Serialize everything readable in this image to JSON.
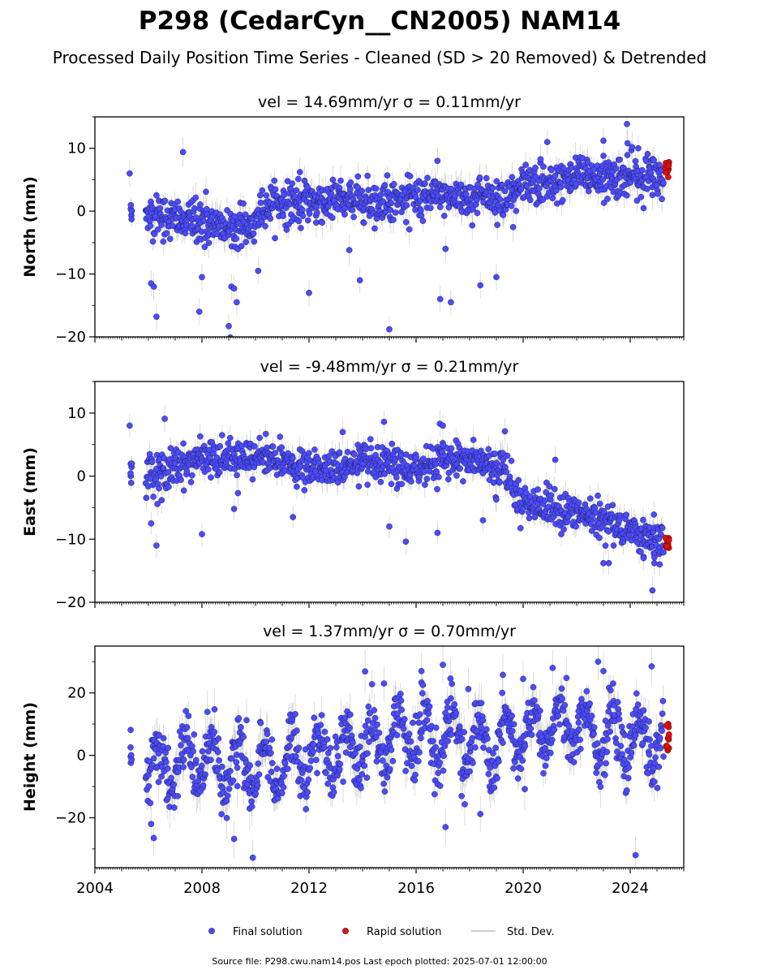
{
  "header": {
    "title": "P298 (CedarCyn__CN2005) NAM14",
    "subtitle": "Processed Daily Position Time Series - Cleaned (SD > 20 Removed) & Detrended"
  },
  "colors": {
    "final": "#4b4bff",
    "final_edge": "#1a1a40",
    "rapid": "#e01010",
    "stddev": "#bdbdbd"
  },
  "chart_data": [
    {
      "type": "scatter",
      "title": "vel = 14.69mm/yr   σ = 0.11mm/yr",
      "ylabel": "North (mm)",
      "xlabel": "",
      "xlim": [
        2004,
        2026
      ],
      "ylim": [
        -20,
        15
      ],
      "yticks": [
        -20,
        -10,
        0,
        10
      ],
      "grid": false,
      "series": [
        {
          "name": "Final solution",
          "trend": [
            [
              2005.4,
              0.5
            ],
            [
              2006.0,
              -0.5
            ],
            [
              2008.0,
              -2
            ],
            [
              2009.9,
              -2.5
            ],
            [
              2010.0,
              -2
            ],
            [
              2010.3,
              1
            ],
            [
              2012.0,
              1.5
            ],
            [
              2016.0,
              2
            ],
            [
              2019.5,
              2.5
            ],
            [
              2020.0,
              3.5
            ],
            [
              2022.0,
              5.5
            ],
            [
              2025.2,
              5.5
            ]
          ],
          "spread": 1.6,
          "outliers": [
            [
              2005.3,
              6
            ],
            [
              2006.1,
              -11.5
            ],
            [
              2006.2,
              -12
            ],
            [
              2006.3,
              -16.8
            ],
            [
              2007.9,
              -16
            ],
            [
              2008.0,
              -10.5
            ],
            [
              2009.0,
              -18.3
            ],
            [
              2009.1,
              -12
            ],
            [
              2009.2,
              -12.3
            ],
            [
              2009.3,
              -14.5
            ],
            [
              2010.1,
              -9.5
            ],
            [
              2012.0,
              -13
            ],
            [
              2013.9,
              -11
            ],
            [
              2015.0,
              -18.8
            ],
            [
              2016.9,
              -14
            ],
            [
              2017.1,
              -6
            ],
            [
              2017.3,
              -14.5
            ],
            [
              2018.4,
              -11.8
            ],
            [
              2019.0,
              -10.5
            ],
            [
              2016.8,
              8
            ],
            [
              2020.9,
              11
            ],
            [
              2023.0,
              11.2
            ],
            [
              2023.9,
              10.8
            ],
            [
              2024.3,
              10
            ]
          ]
        },
        {
          "name": "Rapid solution",
          "x_range": [
            2025.3,
            2025.45
          ],
          "y_range": [
            5,
            8
          ]
        }
      ]
    },
    {
      "type": "scatter",
      "title": "vel = -9.48mm/yr   σ = 0.21mm/yr",
      "ylabel": "East (mm)",
      "xlabel": "",
      "xlim": [
        2004,
        2026
      ],
      "ylim": [
        -20,
        15
      ],
      "yticks": [
        -20,
        -10,
        0,
        10
      ],
      "grid": false,
      "series": [
        {
          "name": "Final solution",
          "trend": [
            [
              2005.4,
              0.5
            ],
            [
              2006.0,
              0.5
            ],
            [
              2008.0,
              2.5
            ],
            [
              2010.0,
              3
            ],
            [
              2012.0,
              1
            ],
            [
              2014.0,
              2
            ],
            [
              2016.0,
              1
            ],
            [
              2017.0,
              3
            ],
            [
              2019.3,
              1.5
            ],
            [
              2019.6,
              -2
            ],
            [
              2020.0,
              -4
            ],
            [
              2022.0,
              -6
            ],
            [
              2023.0,
              -7
            ],
            [
              2025.2,
              -10.5
            ]
          ],
          "spread": 1.4,
          "outliers": [
            [
              2005.3,
              8
            ],
            [
              2006.1,
              -7.5
            ],
            [
              2006.3,
              -11
            ],
            [
              2008.0,
              -9.2
            ],
            [
              2009.2,
              -5.2
            ],
            [
              2011.4,
              -6.5
            ],
            [
              2015.0,
              -8
            ],
            [
              2014.8,
              8.6
            ],
            [
              2016.8,
              -9
            ],
            [
              2017.0,
              8
            ],
            [
              2018.5,
              -7
            ],
            [
              2023.0,
              -13.8
            ],
            [
              2023.2,
              -13.8
            ],
            [
              2024.5,
              -13
            ],
            [
              2024.9,
              -13.8
            ],
            [
              2025.1,
              -14
            ]
          ]
        },
        {
          "name": "Rapid solution",
          "x_range": [
            2025.3,
            2025.45
          ],
          "y_range": [
            -11.5,
            -9.5
          ]
        }
      ]
    },
    {
      "type": "scatter",
      "title": "vel = 1.37mm/yr   σ = 0.70mm/yr",
      "ylabel": "Height (mm)",
      "xlabel": "",
      "xlim": [
        2004,
        2026
      ],
      "ylim": [
        -36,
        35
      ],
      "yticks": [
        -20,
        0,
        20
      ],
      "xticks": [
        2004,
        2008,
        2012,
        2016,
        2020,
        2024
      ],
      "grid": false,
      "series": [
        {
          "name": "Final solution",
          "trend": [
            [
              2005.4,
              -1
            ],
            [
              2006.0,
              -5
            ],
            [
              2008.0,
              -3
            ],
            [
              2010.0,
              -4
            ],
            [
              2012.0,
              0
            ],
            [
              2014.0,
              3
            ],
            [
              2016.0,
              7
            ],
            [
              2018.0,
              4
            ],
            [
              2020.0,
              6
            ],
            [
              2022.0,
              10
            ],
            [
              2023.0,
              5
            ],
            [
              2025.2,
              4
            ]
          ],
          "amplitude": 8,
          "spread": 4.5,
          "outliers": [
            [
              2006.1,
              -22
            ],
            [
              2006.2,
              -26.5
            ],
            [
              2009.2,
              -26.8
            ],
            [
              2009.9,
              -32.8
            ],
            [
              2017.1,
              -23
            ],
            [
              2018.4,
              -18.8
            ],
            [
              2024.2,
              -32
            ],
            [
              2016.2,
              27
            ],
            [
              2017.0,
              29
            ],
            [
              2020.0,
              24.5
            ],
            [
              2021.1,
              28
            ],
            [
              2022.8,
              30
            ],
            [
              2024.8,
              28.5
            ],
            [
              2014.8,
              23
            ],
            [
              2023.0,
              27
            ]
          ]
        },
        {
          "name": "Rapid solution",
          "x_range": [
            2025.3,
            2025.45
          ],
          "y_range": [
            1,
            11
          ]
        }
      ]
    }
  ],
  "legend": {
    "final_label": "Final solution",
    "rapid_label": "Rapid solution",
    "std_label": "Std. Dev."
  },
  "footer": {
    "source": "Source file: P298.cwu.nam14.pos  Last epoch plotted: 2025-07-01 12:00:00"
  }
}
